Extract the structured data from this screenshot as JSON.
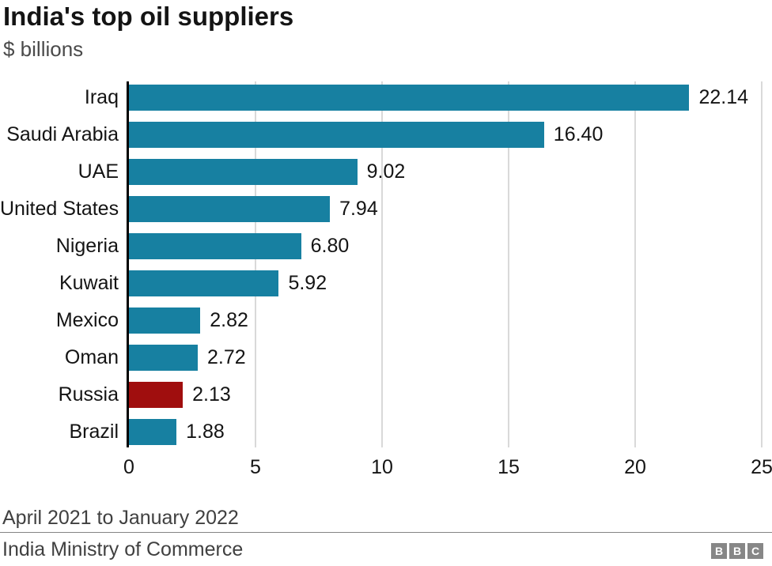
{
  "chart_data": {
    "type": "bar",
    "orientation": "horizontal",
    "title": "India's top oil suppliers",
    "subtitle": "$ billions",
    "categories": [
      "Iraq",
      "Saudi Arabia",
      "UAE",
      "United States",
      "Nigeria",
      "Kuwait",
      "Mexico",
      "Oman",
      "Russia",
      "Brazil"
    ],
    "values": [
      22.14,
      16.4,
      9.02,
      7.94,
      6.8,
      5.92,
      2.82,
      2.72,
      2.13,
      1.88
    ],
    "value_labels": [
      "22.14",
      "16.40",
      "9.02",
      "7.94",
      "6.80",
      "5.92",
      "2.82",
      "2.72",
      "2.13",
      "1.88"
    ],
    "highlight_category": "Russia",
    "xlabel": "",
    "ylabel": "",
    "xlim": [
      0,
      25
    ],
    "xticks": [
      0,
      5,
      10,
      15,
      20,
      25
    ],
    "grid": "vertical-gridlines",
    "legend": "none",
    "colors": {
      "bar": "#1780a1",
      "highlight_bar": "#a00e0e",
      "gridline": "#d9d9d9",
      "axis_line": "#000000"
    }
  },
  "footer": {
    "timeframe": "April 2021 to January 2022",
    "source": "India Ministry of Commerce",
    "logo": {
      "letters": [
        "B",
        "B",
        "C"
      ],
      "block_color": "#878787"
    }
  }
}
